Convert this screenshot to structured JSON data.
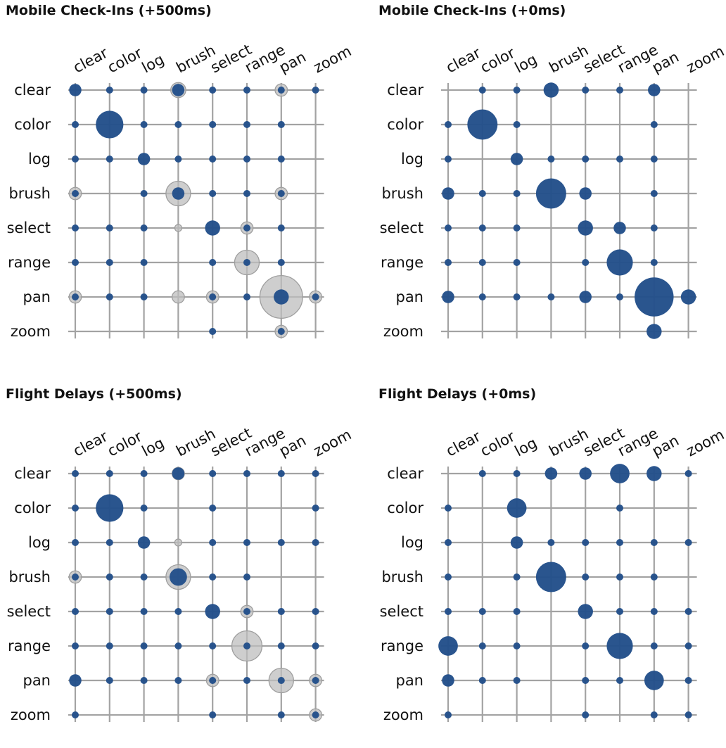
{
  "colors": {
    "primary": "#23508a",
    "ghost": "#bdbdbd",
    "ghost_stroke": "#9e9e9e",
    "grid": "#a3a3a3"
  },
  "chart_data": [
    {
      "type": "scatter",
      "title": "Mobile Check-Ins (+500ms)",
      "x_categories": [
        "clear",
        "color",
        "log",
        "brush",
        "select",
        "range",
        "pan",
        "zoom"
      ],
      "y_categories": [
        "clear",
        "color",
        "log",
        "brush",
        "select",
        "range",
        "pan",
        "zoom"
      ],
      "value_matrix": [
        [
          2,
          1,
          1,
          2,
          1,
          1,
          1,
          1
        ],
        [
          1,
          10,
          1,
          1,
          1,
          1,
          1,
          0
        ],
        [
          1,
          1,
          2,
          1,
          1,
          1,
          1,
          0
        ],
        [
          1,
          0,
          1,
          2,
          1,
          1,
          1,
          0
        ],
        [
          1,
          1,
          1,
          0,
          3,
          1,
          1,
          0
        ],
        [
          1,
          1,
          1,
          0,
          1,
          1,
          1,
          0
        ],
        [
          1,
          1,
          1,
          0,
          1,
          1,
          3,
          1
        ],
        [
          0,
          0,
          0,
          0,
          1,
          0,
          1,
          0
        ]
      ],
      "ghost_matrix": [
        [
          0,
          0,
          0,
          3,
          0,
          0,
          2,
          0
        ],
        [
          0,
          0,
          0,
          0,
          0,
          0,
          0,
          0
        ],
        [
          0,
          0,
          0,
          0,
          0,
          0,
          0,
          0
        ],
        [
          2,
          0,
          0,
          8,
          0,
          0,
          2,
          0
        ],
        [
          0,
          0,
          0,
          1,
          0,
          2,
          0,
          0
        ],
        [
          0,
          0,
          0,
          0,
          0,
          8,
          0,
          0
        ],
        [
          2,
          0,
          0,
          2,
          2,
          0,
          24,
          2
        ],
        [
          0,
          0,
          0,
          0,
          0,
          0,
          2,
          0
        ]
      ]
    },
    {
      "type": "scatter",
      "title": "Mobile Check-Ins (+0ms)",
      "x_categories": [
        "clear",
        "color",
        "log",
        "brush",
        "select",
        "range",
        "pan",
        "zoom"
      ],
      "y_categories": [
        "clear",
        "color",
        "log",
        "brush",
        "select",
        "range",
        "pan",
        "zoom"
      ],
      "value_matrix": [
        [
          0,
          1,
          1,
          3,
          1,
          1,
          2,
          0
        ],
        [
          1,
          12,
          1,
          0,
          0,
          0,
          1,
          0
        ],
        [
          1,
          0,
          2,
          1,
          1,
          1,
          1,
          0
        ],
        [
          2,
          1,
          1,
          12,
          2,
          0,
          1,
          0
        ],
        [
          1,
          1,
          1,
          0,
          3,
          2,
          1,
          0
        ],
        [
          1,
          1,
          1,
          0,
          1,
          9,
          1,
          0
        ],
        [
          2,
          1,
          1,
          1,
          2,
          1,
          20,
          3
        ],
        [
          0,
          0,
          0,
          0,
          0,
          0,
          3,
          0
        ]
      ],
      "ghost_matrix": [
        [
          0,
          0,
          0,
          0,
          0,
          0,
          0,
          0
        ],
        [
          0,
          0,
          0,
          0,
          0,
          0,
          0,
          0
        ],
        [
          0,
          0,
          0,
          0,
          0,
          0,
          0,
          0
        ],
        [
          0,
          0,
          0,
          0,
          0,
          0,
          0,
          0
        ],
        [
          0,
          0,
          0,
          0,
          0,
          0,
          0,
          0
        ],
        [
          0,
          0,
          0,
          0,
          0,
          0,
          0,
          0
        ],
        [
          0,
          0,
          0,
          0,
          0,
          0,
          0,
          0
        ],
        [
          0,
          0,
          0,
          0,
          0,
          0,
          0,
          0
        ]
      ]
    },
    {
      "type": "scatter",
      "title": "Flight Delays (+500ms)",
      "x_categories": [
        "clear",
        "color",
        "log",
        "brush",
        "select",
        "range",
        "pan",
        "zoom"
      ],
      "y_categories": [
        "clear",
        "color",
        "log",
        "brush",
        "select",
        "range",
        "pan",
        "zoom"
      ],
      "value_matrix": [
        [
          1,
          1,
          1,
          2,
          1,
          1,
          1,
          1
        ],
        [
          1,
          10,
          1,
          0,
          1,
          0,
          0,
          1
        ],
        [
          1,
          1,
          2,
          0,
          1,
          1,
          1,
          1
        ],
        [
          1,
          1,
          1,
          4,
          1,
          1,
          0,
          0
        ],
        [
          1,
          1,
          1,
          1,
          3,
          1,
          1,
          1
        ],
        [
          1,
          1,
          1,
          1,
          1,
          1,
          1,
          1
        ],
        [
          2,
          1,
          1,
          1,
          1,
          1,
          1,
          1
        ],
        [
          1,
          0,
          0,
          0,
          1,
          0,
          1,
          1
        ]
      ],
      "ghost_matrix": [
        [
          0,
          0,
          0,
          2,
          0,
          0,
          0,
          0
        ],
        [
          0,
          0,
          0,
          0,
          0,
          0,
          0,
          0
        ],
        [
          0,
          0,
          0,
          1,
          0,
          0,
          0,
          0
        ],
        [
          2,
          0,
          0,
          8,
          0,
          0,
          0,
          0
        ],
        [
          0,
          0,
          0,
          0,
          0,
          2,
          0,
          0
        ],
        [
          0,
          0,
          0,
          0,
          0,
          12,
          0,
          0
        ],
        [
          0,
          0,
          0,
          0,
          2,
          0,
          8,
          2
        ],
        [
          0,
          0,
          0,
          0,
          0,
          0,
          0,
          2
        ]
      ]
    },
    {
      "type": "scatter",
      "title": "Flight Delays (+0ms)",
      "x_categories": [
        "clear",
        "color",
        "log",
        "brush",
        "select",
        "range",
        "pan",
        "zoom"
      ],
      "y_categories": [
        "clear",
        "color",
        "log",
        "brush",
        "select",
        "range",
        "pan",
        "zoom"
      ],
      "value_matrix": [
        [
          0,
          1,
          1,
          2,
          2,
          5,
          3,
          1
        ],
        [
          1,
          0,
          5,
          0,
          0,
          1,
          0,
          0
        ],
        [
          1,
          0,
          2,
          1,
          1,
          1,
          1,
          1
        ],
        [
          1,
          0,
          1,
          12,
          1,
          1,
          1,
          0
        ],
        [
          1,
          1,
          1,
          0,
          3,
          1,
          1,
          1
        ],
        [
          5,
          1,
          1,
          0,
          1,
          9,
          1,
          1
        ],
        [
          2,
          1,
          1,
          0,
          1,
          1,
          5,
          1
        ],
        [
          1,
          0,
          0,
          0,
          1,
          0,
          1,
          1
        ]
      ],
      "ghost_matrix": [
        [
          0,
          0,
          0,
          0,
          0,
          0,
          0,
          0
        ],
        [
          0,
          0,
          0,
          0,
          0,
          0,
          0,
          0
        ],
        [
          0,
          0,
          0,
          0,
          0,
          0,
          0,
          0
        ],
        [
          0,
          0,
          0,
          0,
          0,
          0,
          0,
          0
        ],
        [
          0,
          0,
          0,
          0,
          0,
          0,
          0,
          0
        ],
        [
          0,
          0,
          0,
          0,
          0,
          0,
          0,
          0
        ],
        [
          0,
          0,
          0,
          0,
          0,
          0,
          0,
          0
        ],
        [
          0,
          0,
          0,
          0,
          0,
          0,
          0,
          0
        ]
      ]
    }
  ]
}
